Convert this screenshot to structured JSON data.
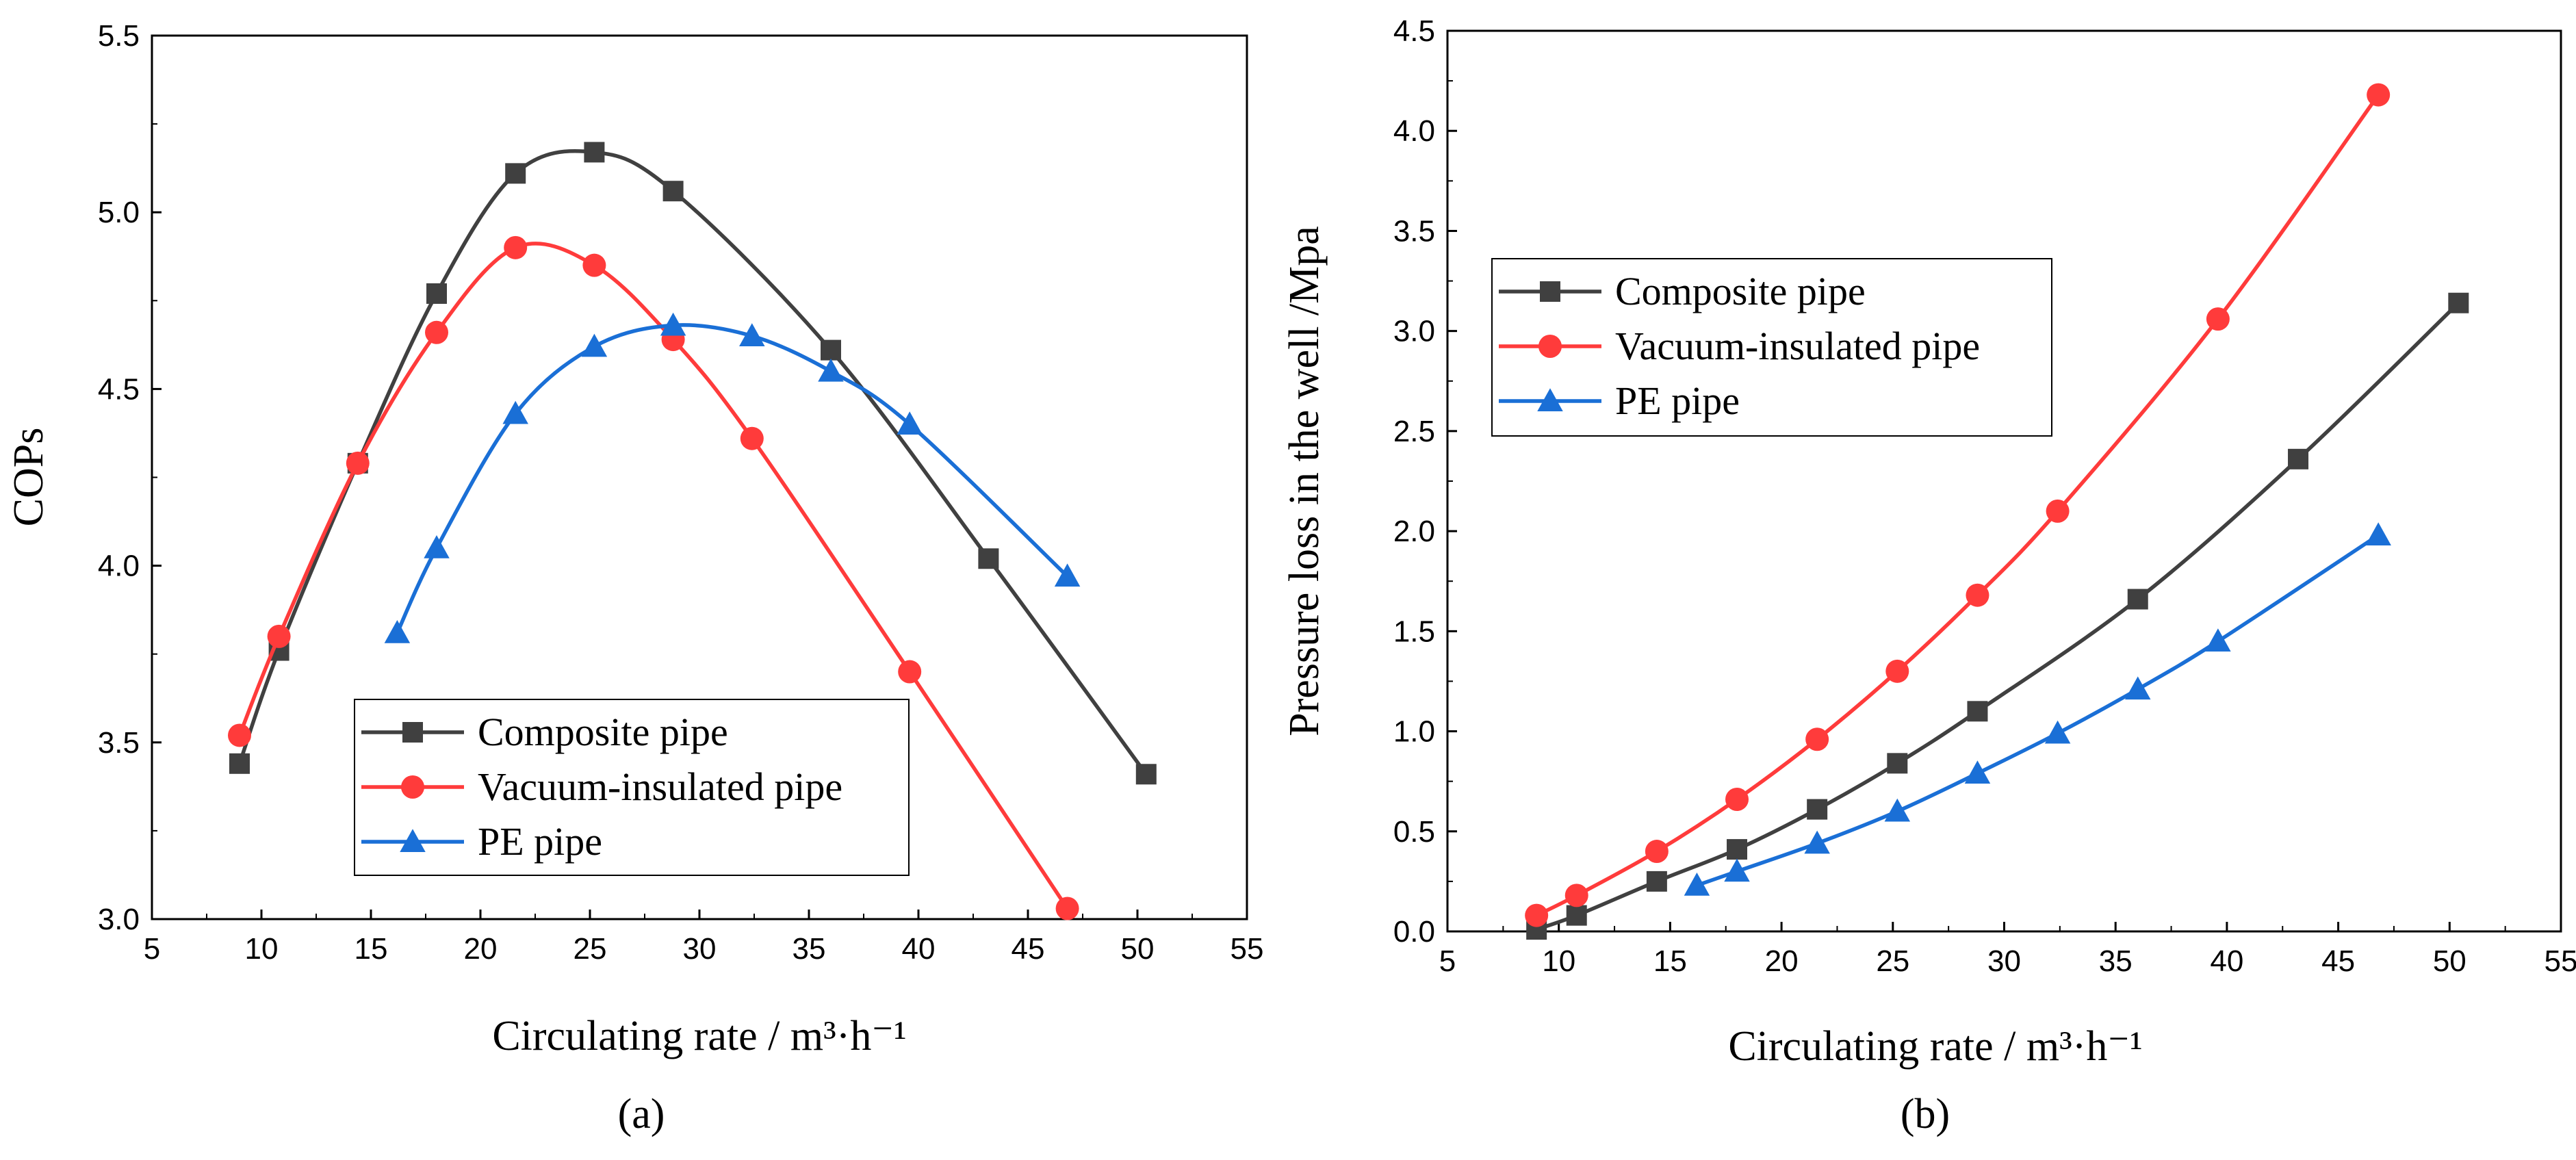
{
  "chart_data": [
    {
      "type": "line",
      "panel": "a",
      "panel_label": "(a)",
      "panel_letter": "a",
      "xlabel": "Circulating rate / m³·h⁻¹",
      "ylabel": "COPs",
      "xlim": [
        5,
        55
      ],
      "ylim": [
        3.0,
        5.5
      ],
      "x_ticks": [
        "5",
        "10",
        "15",
        "20",
        "25",
        "30",
        "35",
        "40",
        "45",
        "50",
        "55"
      ],
      "y_ticks": [
        "3.0",
        "3.5",
        "4.0",
        "4.5",
        "5.0",
        "5.5"
      ],
      "legend_position": "lower-center",
      "series": [
        {
          "name": "Composite pipe",
          "color": "#404040",
          "marker": "square",
          "x": [
            9.0,
            10.8,
            14.4,
            18.0,
            21.6,
            25.2,
            28.8,
            36.0,
            43.2,
            50.4
          ],
          "y": [
            3.44,
            3.76,
            4.29,
            4.77,
            5.11,
            5.17,
            5.06,
            4.61,
            4.02,
            3.41
          ]
        },
        {
          "name": "Vacuum-insulated pipe",
          "color": "#ff3b3b",
          "marker": "circle",
          "x": [
            9.0,
            10.8,
            14.4,
            18.0,
            21.6,
            25.2,
            28.8,
            32.4,
            39.6,
            46.8
          ],
          "y": [
            3.52,
            3.8,
            4.29,
            4.66,
            4.9,
            4.85,
            4.64,
            4.36,
            3.7,
            3.03
          ]
        },
        {
          "name": "PE pipe",
          "color": "#1a6fd6",
          "marker": "triangle",
          "x": [
            16.2,
            18.0,
            21.6,
            25.2,
            28.8,
            32.4,
            36.0,
            39.6,
            46.8
          ],
          "y": [
            3.81,
            4.05,
            4.43,
            4.62,
            4.68,
            4.65,
            4.55,
            4.4,
            3.97
          ]
        }
      ]
    },
    {
      "type": "line",
      "panel": "b",
      "panel_label": "(b)",
      "panel_letter": "b",
      "xlabel": "Circulating rate / m³·h⁻¹",
      "ylabel": "Pressure loss in the well /Mpa",
      "xlim": [
        5,
        55
      ],
      "ylim": [
        0.0,
        4.5
      ],
      "x_ticks": [
        "5",
        "10",
        "15",
        "20",
        "25",
        "30",
        "35",
        "40",
        "45",
        "50",
        "55"
      ],
      "y_ticks": [
        "0.0",
        "0.5",
        "1.0",
        "1.5",
        "2.0",
        "2.5",
        "3.0",
        "3.5",
        "4.0",
        "4.5"
      ],
      "legend_position": "upper-left",
      "series": [
        {
          "name": "Composite pipe",
          "color": "#404040",
          "marker": "square",
          "x": [
            9.0,
            10.8,
            14.4,
            18.0,
            21.6,
            25.2,
            28.8,
            36.0,
            43.2,
            50.4
          ],
          "y": [
            0.01,
            0.08,
            0.25,
            0.41,
            0.61,
            0.84,
            1.1,
            1.66,
            2.36,
            3.14
          ]
        },
        {
          "name": "Vacuum-insulated pipe",
          "color": "#ff3b3b",
          "marker": "circle",
          "x": [
            9.0,
            10.8,
            14.4,
            18.0,
            21.6,
            25.2,
            28.8,
            32.4,
            39.6,
            46.8
          ],
          "y": [
            0.08,
            0.18,
            0.4,
            0.66,
            0.96,
            1.3,
            1.68,
            2.1,
            3.06,
            4.18
          ]
        },
        {
          "name": "PE pipe",
          "color": "#1a6fd6",
          "marker": "triangle",
          "x": [
            16.2,
            18.0,
            21.6,
            25.2,
            28.8,
            32.4,
            36.0,
            39.6,
            46.8
          ],
          "y": [
            0.23,
            0.3,
            0.44,
            0.6,
            0.79,
            0.99,
            1.21,
            1.45,
            1.98
          ]
        }
      ]
    }
  ]
}
